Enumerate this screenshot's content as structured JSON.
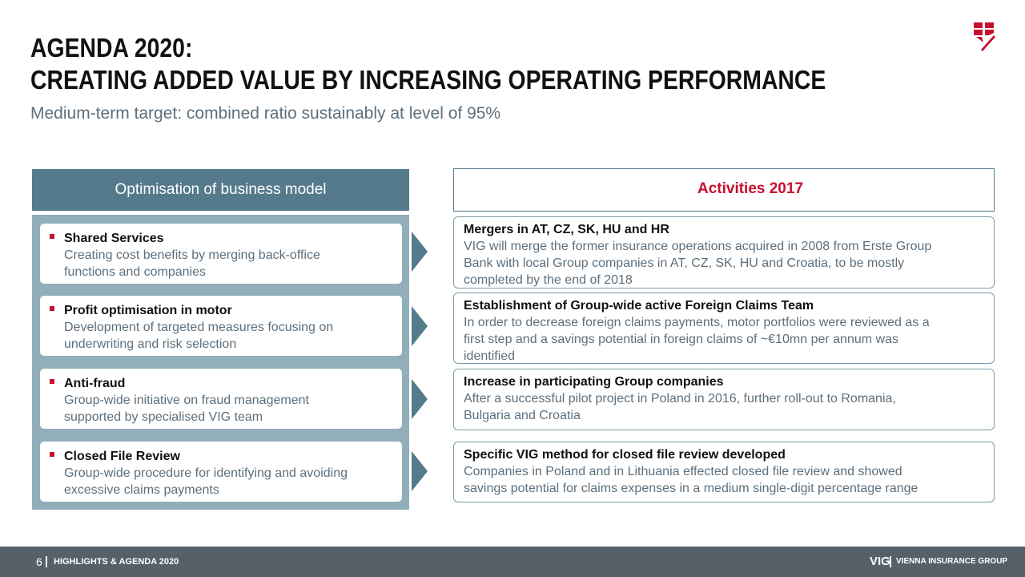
{
  "header": {
    "title_line1": "AGENDA 2020:",
    "title_line2": "CREATING ADDED VALUE BY INCREASING OPERATING PERFORMANCE",
    "subtitle": "Medium-term target: combined ratio sustainably at level of 95%"
  },
  "logo": {
    "icon": "vig-shield-logo-icon",
    "color": "#c8102e"
  },
  "left": {
    "header": "Optimisation of business model",
    "items": [
      {
        "title": "Shared Services",
        "desc_line1": "Creating cost benefits by merging back-office",
        "desc_line2": "functions and companies"
      },
      {
        "title": "Profit optimisation in motor",
        "desc_line1": "Development of targeted measures focusing on",
        "desc_line2": "underwriting and risk selection"
      },
      {
        "title": "Anti-fraud",
        "desc_line1": "Group-wide initiative on fraud management",
        "desc_line2": "supported by specialised VIG team"
      },
      {
        "title": "Closed File Review",
        "desc_line1": "Group-wide procedure for identifying and avoiding",
        "desc_line2": "excessive claims payments"
      }
    ]
  },
  "right": {
    "header": "Activities 2017",
    "items": [
      {
        "title": "Mergers in AT, CZ, SK, HU and HR",
        "lines": [
          "VIG will merge the former insurance operations acquired in 2008 from Erste Group",
          "Bank with local Group companies in AT, CZ, SK, HU and Croatia, to be mostly",
          "completed by the end of 2018"
        ]
      },
      {
        "title": "Establishment of Group-wide active Foreign Claims Team",
        "lines": [
          "In order to decrease foreign claims payments, motor portfolios were reviewed as a",
          "first step and a savings potential in foreign claims of ~€10mn per annum was",
          "identified"
        ]
      },
      {
        "title": "Increase in participating Group companies",
        "lines": [
          "After a successful pilot project in Poland in 2016, further roll-out to Romania,",
          "Bulgaria and Croatia"
        ]
      },
      {
        "title": "Specific VIG method for closed file review developed",
        "lines": [
          "Companies in Poland and in Lithuania effected closed file review and showed",
          "savings potential for claims expenses in a medium single-digit percentage range"
        ]
      }
    ]
  },
  "footer": {
    "page_number": "6",
    "section": "HIGHLIGHTS & AGENDA 2020",
    "brand": "VIG",
    "company": "VIENNA INSURANCE GROUP"
  },
  "colors": {
    "accent_red": "#c8102e",
    "header_blue": "#557a8c",
    "panel_blue": "#91aebb",
    "footer_gray": "#566068",
    "text_gray": "#5e6f7c"
  }
}
